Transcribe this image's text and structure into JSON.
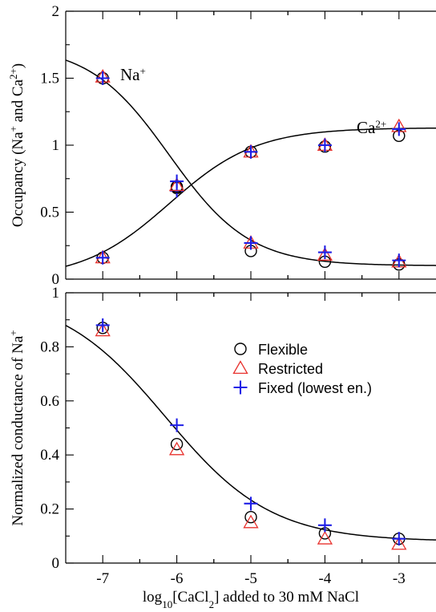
{
  "colors": {
    "flexible": "#000000",
    "restricted": "#e8312d",
    "fixed": "#1f1fe6",
    "fit": "#000000"
  },
  "chart_data": [
    {
      "type": "scatter",
      "panel": "top",
      "ylabel_parts": [
        "Occupancy (Na",
        "+",
        "  and Ca",
        "2+",
        ")"
      ],
      "xlim": [
        -7.5,
        -2.5
      ],
      "ylim": [
        0,
        2
      ],
      "yticks": [
        0,
        0.5,
        1,
        1.5,
        2
      ],
      "ytick_labels": [
        "0",
        "0.5",
        "1",
        "1.5",
        "2"
      ],
      "annotations": [
        {
          "id": "na",
          "base": "Na",
          "sup": "+"
        },
        {
          "id": "ca",
          "base": "Ca",
          "sup": "2+"
        }
      ],
      "series": [
        {
          "marker": "circle",
          "label_key": "flexible",
          "group": "Na+",
          "x": [
            -7,
            -6,
            -5,
            -4,
            -3
          ],
          "y": [
            1.5,
            0.68,
            0.21,
            0.13,
            0.11
          ]
        },
        {
          "marker": "triangle",
          "label_key": "restricted",
          "group": "Na+",
          "x": [
            -7,
            -6,
            -5,
            -4,
            -3
          ],
          "y": [
            1.51,
            0.7,
            0.27,
            0.18,
            0.13
          ]
        },
        {
          "marker": "plus",
          "label_key": "fixed",
          "group": "Na+",
          "x": [
            -7,
            -6,
            -5,
            -4,
            -3
          ],
          "y": [
            1.5,
            0.66,
            0.27,
            0.2,
            0.14
          ]
        },
        {
          "marker": "circle",
          "label_key": "flexible",
          "group": "Ca2+",
          "x": [
            -7,
            -6,
            -5,
            -4,
            -3
          ],
          "y": [
            0.16,
            0.69,
            0.95,
            0.99,
            1.07
          ]
        },
        {
          "marker": "triangle",
          "label_key": "restricted",
          "group": "Ca2+",
          "x": [
            -7,
            -6,
            -5,
            -4,
            -3
          ],
          "y": [
            0.16,
            0.7,
            0.95,
            1.0,
            1.14
          ]
        },
        {
          "marker": "plus",
          "label_key": "fixed",
          "group": "Ca2+",
          "x": [
            -7,
            -6,
            -5,
            -4,
            -3
          ],
          "y": [
            0.16,
            0.73,
            0.95,
            1.0,
            1.12
          ]
        }
      ],
      "fit_curves": [
        {
          "group": "Na+",
          "upper": 1.75,
          "lower": 0.1,
          "midpoint": -6.1,
          "slope": 1.85
        },
        {
          "group": "Ca2+",
          "upper": 1.13,
          "lower": 0.0,
          "midpoint": -6.1,
          "slope": 1.7
        }
      ]
    },
    {
      "type": "scatter",
      "panel": "bottom",
      "ylabel_parts": [
        "Normalized conductance of Na",
        "+"
      ],
      "xlabel_parts": [
        "log",
        "10",
        "[CaCl",
        "2",
        "] added to 30 mM NaCl"
      ],
      "xlim": [
        -7.5,
        -2.5
      ],
      "ylim": [
        0,
        1
      ],
      "xticks": [
        -7,
        -6,
        -5,
        -4,
        -3
      ],
      "xtick_labels": [
        "-7",
        "-6",
        "-5",
        "-4",
        "-3"
      ],
      "yticks": [
        0,
        0.2,
        0.4,
        0.6,
        0.8,
        1
      ],
      "ytick_labels": [
        "0",
        "0.2",
        "0.4",
        "0.6",
        "0.8",
        "1"
      ],
      "legend": {
        "placement": "center-right",
        "entries": [
          {
            "key": "flexible",
            "label": "Flexible",
            "marker": "circle"
          },
          {
            "key": "restricted",
            "label": "Restricted",
            "marker": "triangle"
          },
          {
            "key": "fixed",
            "label": "Fixed (lowest en.)",
            "marker": "plus"
          }
        ]
      },
      "series": [
        {
          "marker": "circle",
          "label_key": "flexible",
          "x": [
            -7,
            -6,
            -5,
            -4,
            -3
          ],
          "y": [
            0.87,
            0.44,
            0.17,
            0.11,
            0.09
          ]
        },
        {
          "marker": "triangle",
          "label_key": "restricted",
          "x": [
            -7,
            -6,
            -5,
            -4,
            -3
          ],
          "y": [
            0.86,
            0.42,
            0.15,
            0.09,
            0.07
          ]
        },
        {
          "marker": "plus",
          "label_key": "fixed",
          "x": [
            -7,
            -6,
            -5,
            -4,
            -3
          ],
          "y": [
            0.88,
            0.51,
            0.22,
            0.14,
            0.09
          ]
        }
      ],
      "fit_curves": [
        {
          "upper": 1.0,
          "lower": 0.08,
          "midpoint": -6.15,
          "slope": 1.4
        }
      ]
    }
  ]
}
